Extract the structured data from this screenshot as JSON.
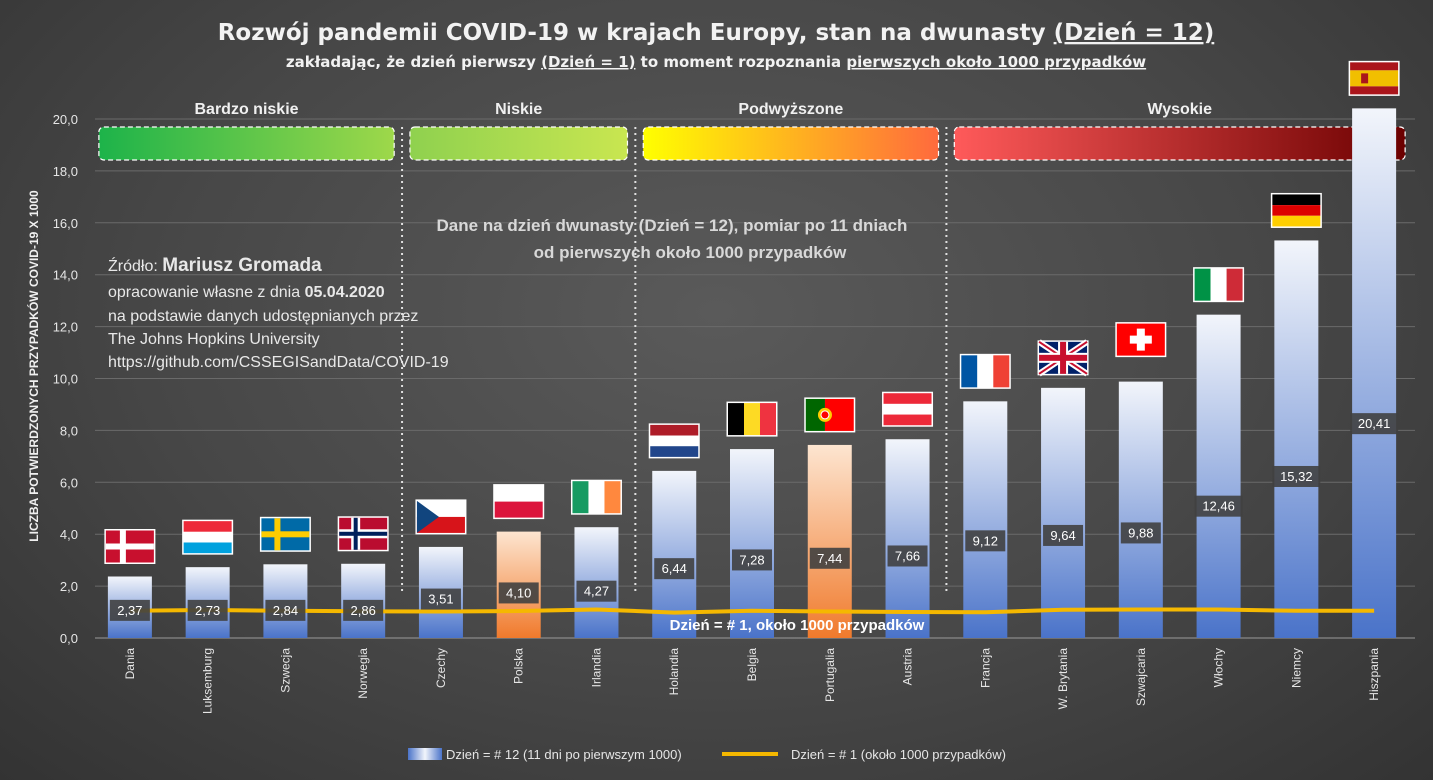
{
  "header": {
    "title_main": "Rozwój pandemii COVID-19 w krajach Europy, stan na dwunasty ",
    "title_underlined": "(Dzień = 12)",
    "subtitle_1": "zakładając, że dzień pierwszy ",
    "subtitle_u1": "(Dzień = 1)",
    "subtitle_2": " to moment rozpoznania ",
    "subtitle_u2": "pierwszych około 1000 przypadków"
  },
  "source": {
    "prefix": "Źródło: ",
    "author": "Mariusz Gromada",
    "line2_prefix": "opracowanie własne z dnia ",
    "date": "05.04.2020",
    "line3": "na podstawie danych udostępnianych przez",
    "line4": "The Johns Hopkins University",
    "line5": "https://github.com/CSSEGISandData/COVID-19"
  },
  "note": {
    "line1": "Dane na dzień dwunasty (Dzień = 12), pomiar po 11 dniach",
    "line2": "od pierwszych około 1000 przypadków"
  },
  "line_label": "Dzień = # 1, około 1000 przypadków",
  "categories_groups": [
    {
      "label": "Bardzo niskie",
      "from": 0,
      "to": 3,
      "colors": [
        "#1db34a",
        "#9ed84a"
      ]
    },
    {
      "label": "Niskie",
      "from": 4,
      "to": 6,
      "colors": [
        "#8fd14f",
        "#c9e650"
      ]
    },
    {
      "label": "Podwyższone",
      "from": 7,
      "to": 10,
      "colors": [
        "#ffff00",
        "#ff6a3d"
      ]
    },
    {
      "label": "Wysokie",
      "from": 11,
      "to": 16,
      "colors": [
        "#ff5a5a",
        "#6b0000"
      ]
    }
  ],
  "legend": {
    "bars": "Dzień = # 12 (11 dni po pierwszym 1000)",
    "line": "Dzień = # 1 (około 1000 przypadków)"
  },
  "colors": {
    "bar_top": "#f2f5fb",
    "bar_bottom": "#4a73c9",
    "highlight_top": "#fde5d0",
    "highlight_bottom": "#f07a2c",
    "line": "#f5b800",
    "label_bg": "#404040"
  },
  "chart_data": {
    "type": "bar",
    "ylabel": "LICZBA POTWIERDZONYCH PRZYPADKÓW COVID-19 X 1000",
    "ylim": [
      0,
      20
    ],
    "yticks": [
      "0,0",
      "2,0",
      "4,0",
      "6,0",
      "8,0",
      "10,0",
      "12,0",
      "14,0",
      "16,0",
      "18,0",
      "20,0"
    ],
    "categories": [
      "Dania",
      "Luksemburg",
      "Szwecja",
      "Norwegia",
      "Czechy",
      "Polska",
      "Irlandia",
      "Holandia",
      "Belgia",
      "Portugalia",
      "Austria",
      "Francja",
      "W. Brytania",
      "Szwajcaria",
      "Włochy",
      "Niemcy",
      "Hiszpania"
    ],
    "series": [
      {
        "name": "Dzień = # 12 (11 dni po pierwszym 1000)",
        "values": [
          2.37,
          2.73,
          2.84,
          2.86,
          3.51,
          4.1,
          4.27,
          6.44,
          7.28,
          7.44,
          7.66,
          9.12,
          9.64,
          9.88,
          12.46,
          15.32,
          20.41
        ],
        "labels": [
          "2,37",
          "2,73",
          "2,84",
          "2,86",
          "3,51",
          "4,10",
          "4,27",
          "6,44",
          "7,28",
          "7,44",
          "7,66",
          "9,12",
          "9,64",
          "9,88",
          "12,46",
          "15,32",
          "20,41"
        ],
        "highlight": [
          "Polska",
          "Portugalia"
        ]
      },
      {
        "name": "Dzień = # 1 (około 1000 przypadków)",
        "type": "line",
        "values": [
          1.05,
          1.08,
          1.05,
          1.03,
          1.02,
          1.04,
          1.1,
          0.98,
          1.05,
          1.02,
          1.0,
          0.99,
          1.09,
          1.1,
          1.1,
          1.05,
          1.05
        ]
      }
    ],
    "flags": [
      "denmark",
      "luxembourg",
      "sweden",
      "norway",
      "czechia",
      "poland",
      "ireland",
      "netherlands",
      "belgium",
      "portugal",
      "austria",
      "france",
      "uk",
      "switzerland",
      "italy",
      "germany",
      "spain"
    ]
  }
}
